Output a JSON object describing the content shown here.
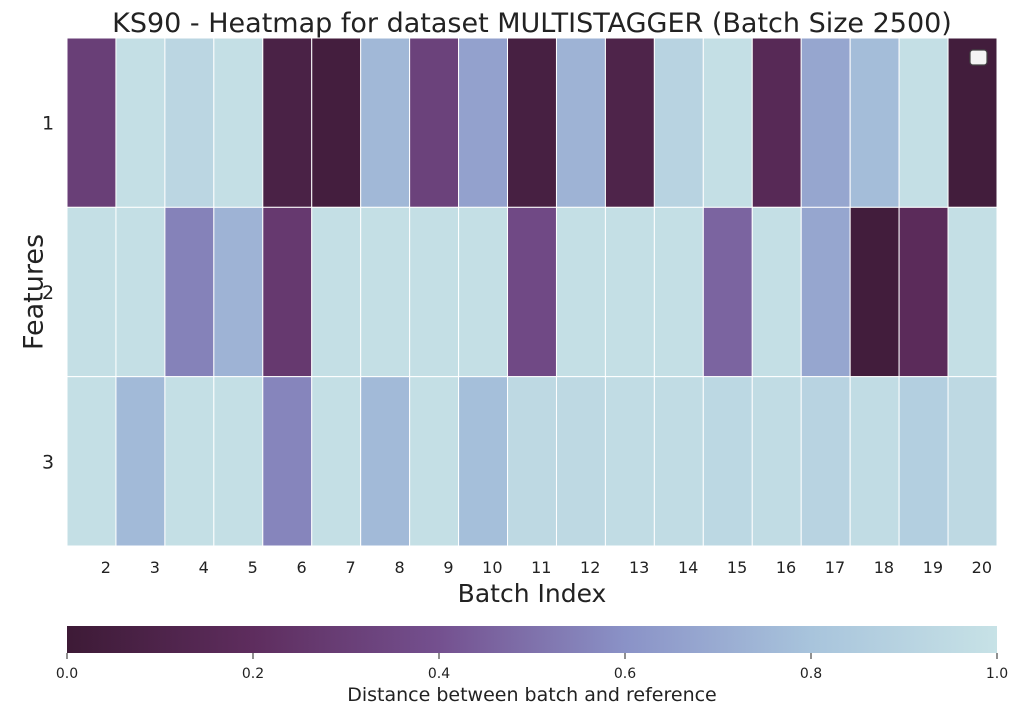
{
  "chart_data": {
    "type": "heatmap",
    "title": "KS90 - Heatmap for dataset MULTISTAGGER (Batch Size 2500)",
    "xlabel": "Batch Index",
    "ylabel": "Features",
    "x_tick_labels": [
      "2",
      "3",
      "4",
      "5",
      "6",
      "7",
      "8",
      "9",
      "10",
      "11",
      "12",
      "13",
      "14",
      "15",
      "16",
      "17",
      "18",
      "19",
      "20"
    ],
    "rows": [
      "1",
      "2",
      "3"
    ],
    "columns": 19,
    "values": [
      [
        0.3,
        0.98,
        0.92,
        0.98,
        0.08,
        0.04,
        0.75,
        0.32,
        0.66,
        0.06,
        0.73,
        0.1,
        0.9,
        0.98,
        0.16,
        0.68,
        0.77,
        0.98,
        0.03
      ],
      [
        0.98,
        0.98,
        0.55,
        0.73,
        0.27,
        0.98,
        0.98,
        0.98,
        0.98,
        0.36,
        0.98,
        0.98,
        0.98,
        0.46,
        0.98,
        0.68,
        0.03,
        0.18,
        0.98
      ],
      [
        0.98,
        0.76,
        0.98,
        0.98,
        0.56,
        0.98,
        0.76,
        0.98,
        0.78,
        0.94,
        0.94,
        0.96,
        0.96,
        0.93,
        0.96,
        0.9,
        0.96,
        0.87,
        0.94
      ]
    ],
    "colorbar": {
      "label": "Distance between batch and reference",
      "ticks": [
        "0.0",
        "0.2",
        "0.4",
        "0.6",
        "0.8",
        "1.0"
      ],
      "range": [
        0.0,
        1.0
      ]
    },
    "colormap": [
      "#3d1a36",
      "#5e2d5e",
      "#74508f",
      "#8a92c7",
      "#a8c4dc",
      "#c7e2e6"
    ],
    "legend": {
      "position": "top-right",
      "entries": []
    }
  }
}
